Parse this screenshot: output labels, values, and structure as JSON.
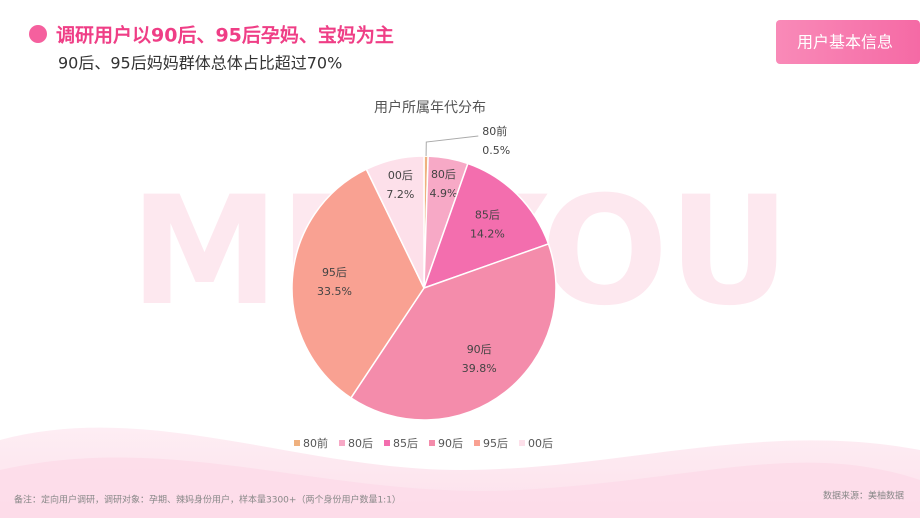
{
  "header": {
    "title": "调研用户以90后、95后孕妈、宝妈为主",
    "subtitle": "90后、95后妈妈群体总体占比超过70%",
    "badge": "用户基本信息"
  },
  "watermark": "MEIYOU",
  "chart_data": {
    "type": "pie",
    "title": "用户所属年代分布",
    "categories": [
      "80前",
      "80后",
      "85后",
      "90后",
      "95后",
      "00后"
    ],
    "values": [
      0.5,
      4.9,
      14.2,
      39.8,
      33.5,
      7.2
    ],
    "value_labels": [
      "0.5%",
      "4.9%",
      "14.2%",
      "39.8%",
      "33.5%",
      "7.2%"
    ],
    "colors": [
      "#efb17f",
      "#f7a9c6",
      "#f36eae",
      "#f48cab",
      "#f9a192",
      "#fde0ea"
    ],
    "legend": "bottom"
  },
  "footer": {
    "note": "备注：定向用户调研，调研对象：孕期、辣妈身份用户，样本量3300+（两个身份用户数量1:1）",
    "source": "数据来源：美柚数据"
  }
}
